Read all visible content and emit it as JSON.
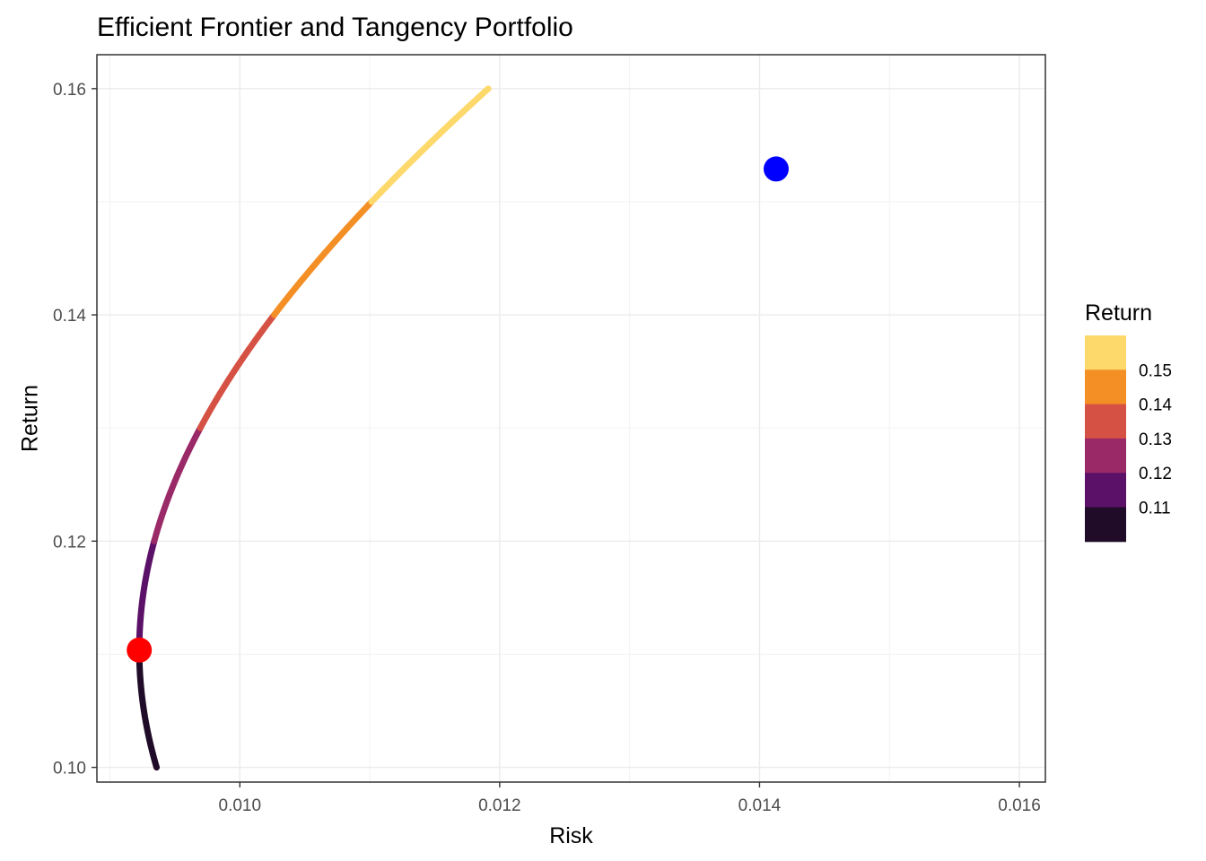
{
  "chart_data": {
    "type": "line",
    "title": "Efficient Frontier and Tangency Portfolio",
    "xlabel": "Risk",
    "ylabel": "Return",
    "xlim": [
      0.0089,
      0.0162
    ],
    "ylim": [
      0.0987,
      0.163
    ],
    "x_ticks": [
      "0.010",
      "0.012",
      "0.014",
      "0.016"
    ],
    "y_ticks": [
      "0.10",
      "0.12",
      "0.14",
      "0.16"
    ],
    "x_tick_values": [
      0.01,
      0.012,
      0.014,
      0.016
    ],
    "y_tick_values": [
      0.1,
      0.12,
      0.14,
      0.16
    ],
    "grid": true,
    "frontier": {
      "min_variance": {
        "risk": 0.009226,
        "return": 0.11037
      },
      "return_range": [
        0.1,
        0.16
      ],
      "variance_curvature": 0.02305
    },
    "series": [
      {
        "return_min": 0.1,
        "return_max": 0.11,
        "color": "#200c29"
      },
      {
        "return_min": 0.11,
        "return_max": 0.12,
        "color": "#5c1168"
      },
      {
        "return_min": 0.12,
        "return_max": 0.13,
        "color": "#9a2967"
      },
      {
        "return_min": 0.13,
        "return_max": 0.14,
        "color": "#d55143"
      },
      {
        "return_min": 0.14,
        "return_max": 0.15,
        "color": "#f48f26"
      },
      {
        "return_min": 0.15,
        "return_max": 0.16,
        "color": "#fdd86b"
      }
    ],
    "points": [
      {
        "x": 0.009226,
        "y": 0.11037,
        "color": "#ff0000"
      },
      {
        "x": 0.014128,
        "y": 0.1529,
        "color": "#0000ff"
      }
    ],
    "legend": {
      "title": "Return",
      "placement": "right",
      "labels": [
        "0.15",
        "0.14",
        "0.13",
        "0.12",
        "0.11"
      ],
      "colors": [
        "#fdd86b",
        "#f48f26",
        "#d55143",
        "#9a2967",
        "#5c1168",
        "#200c29"
      ]
    }
  }
}
